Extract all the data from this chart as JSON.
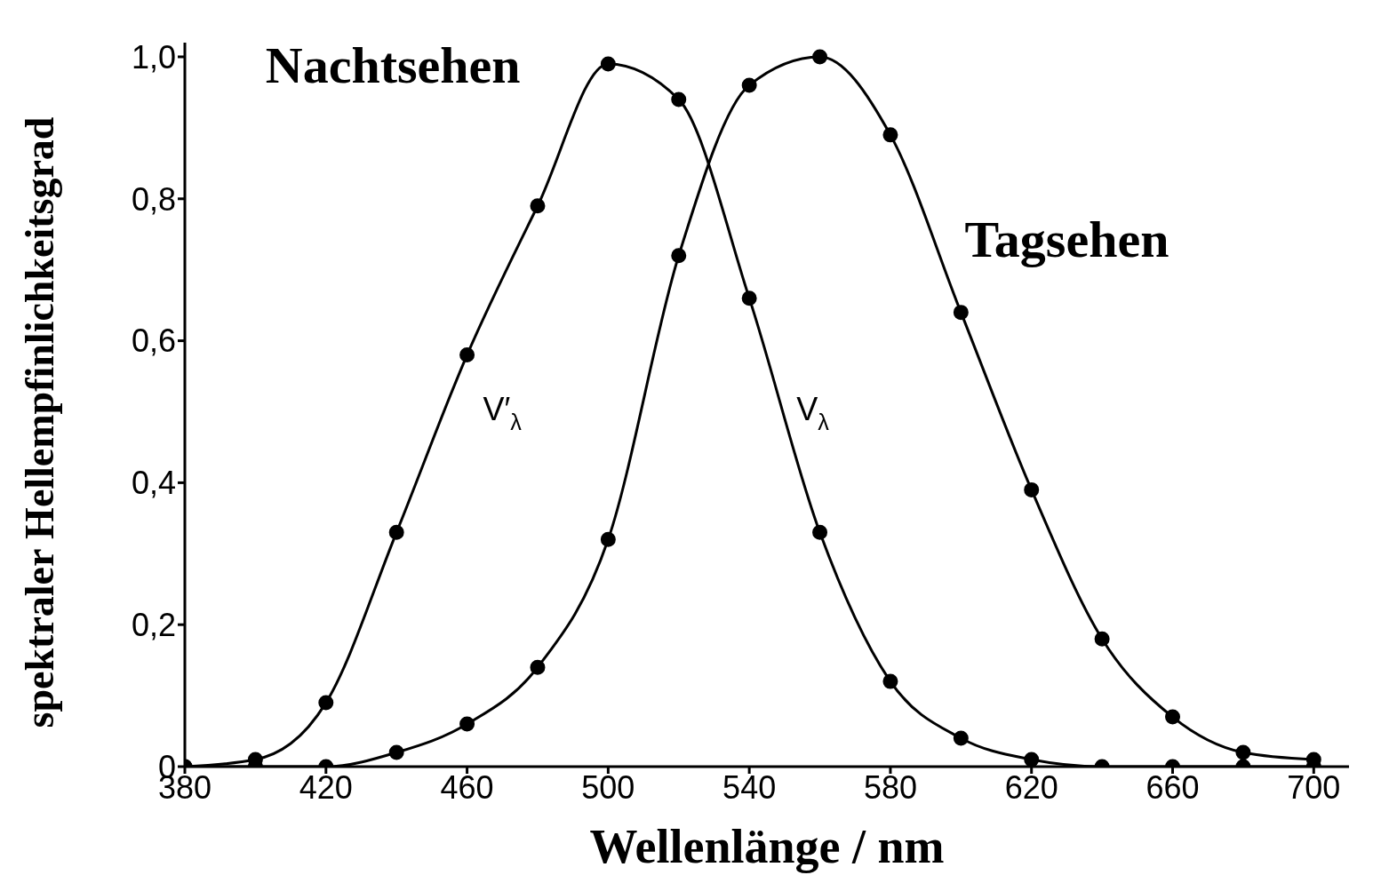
{
  "chart_data": {
    "type": "line",
    "xlabel": "Wellenlänge / nm",
    "ylabel": "spektraler Hellempfinlichkeitsgrad",
    "x": [
      380,
      400,
      420,
      440,
      460,
      480,
      500,
      520,
      540,
      560,
      580,
      600,
      620,
      640,
      660,
      680,
      700
    ],
    "series": [
      {
        "name": "Nachtsehen",
        "color": "#000000",
        "values": [
          0,
          0.01,
          0.09,
          0.33,
          0.58,
          0.79,
          0.99,
          0.94,
          0.66,
          0.33,
          0.12,
          0.04,
          0.01,
          0,
          0,
          0,
          0
        ]
      },
      {
        "name": "Tagsehen",
        "color": "#000000",
        "values": [
          0,
          0,
          0,
          0.02,
          0.06,
          0.14,
          0.32,
          0.72,
          0.96,
          1.0,
          0.89,
          0.64,
          0.39,
          0.18,
          0.07,
          0.02,
          0.01
        ]
      }
    ],
    "annotations": [
      "V′$_{λ}$",
      "V$_{λ}$"
    ],
    "xlim": [
      380,
      710
    ],
    "ylim": [
      0,
      1.02
    ],
    "xticks": [
      380,
      420,
      460,
      500,
      540,
      580,
      620,
      660,
      700
    ],
    "yticks": [
      {
        "value": 0,
        "label": "0"
      },
      {
        "value": 0.2,
        "label": "0,2"
      },
      {
        "value": 0.4,
        "label": "0,4"
      },
      {
        "value": 0.6,
        "label": "0,6"
      },
      {
        "value": 0.8,
        "label": "0,8"
      },
      {
        "value": 1.0,
        "label": "1,0"
      }
    ],
    "grid": false,
    "legend": false,
    "marker": "circle",
    "line_style": "solid"
  }
}
